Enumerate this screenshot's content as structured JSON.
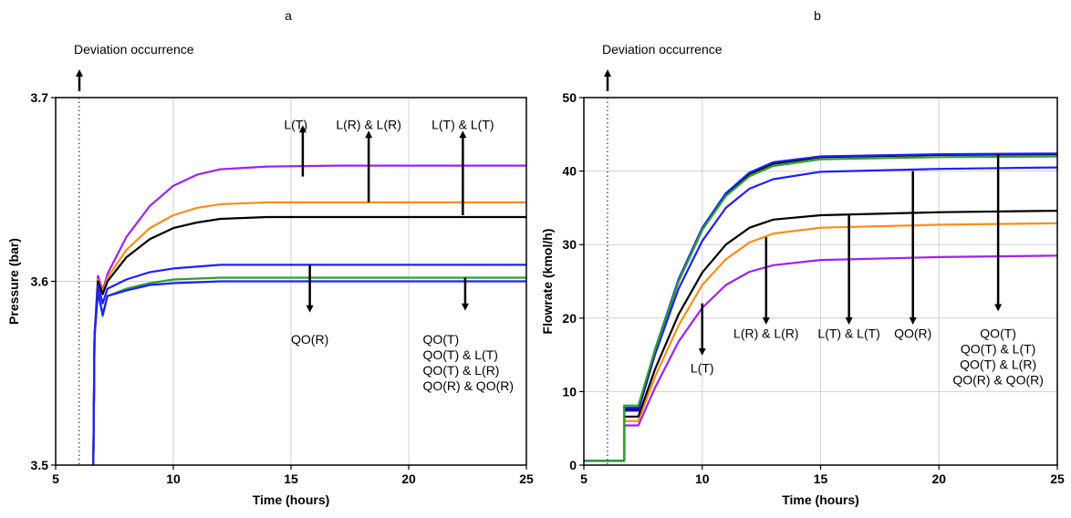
{
  "chart_data": [
    {
      "type": "line",
      "panel_label": "a",
      "xlabel": "Time (hours)",
      "ylabel": "Pressure (bar)",
      "xlim": [
        5,
        25
      ],
      "ylim": [
        3.5,
        3.7
      ],
      "xticks": [
        5,
        10,
        15,
        20,
        25
      ],
      "yticks": [
        3.5,
        3.6,
        3.7
      ],
      "xtick_labels": [
        "5",
        "10",
        "15",
        "20",
        "25"
      ],
      "ytick_labels": [
        "3.5",
        "3.6",
        "3.7"
      ],
      "grid": true,
      "deviation": {
        "x": 6,
        "label": "Deviation occurrence"
      },
      "series": [
        {
          "color": "#A020F0",
          "points": [
            [
              6.6,
              3.5
            ],
            [
              6.65,
              3.57
            ],
            [
              6.8,
              3.603
            ],
            [
              7.0,
              3.595
            ],
            [
              7.2,
              3.604
            ],
            [
              8,
              3.624
            ],
            [
              9,
              3.641
            ],
            [
              10,
              3.652
            ],
            [
              11,
              3.658
            ],
            [
              12,
              3.661
            ],
            [
              14,
              3.6625
            ],
            [
              17,
              3.663
            ],
            [
              20,
              3.663
            ],
            [
              25,
              3.663
            ]
          ]
        },
        {
          "color": "#FF8C1A",
          "points": [
            [
              6.6,
              3.5
            ],
            [
              6.65,
              3.57
            ],
            [
              6.8,
              3.601
            ],
            [
              7.0,
              3.594
            ],
            [
              7.2,
              3.602
            ],
            [
              8,
              3.617
            ],
            [
              9,
              3.629
            ],
            [
              10,
              3.636
            ],
            [
              11,
              3.64
            ],
            [
              12,
              3.642
            ],
            [
              14,
              3.643
            ],
            [
              17,
              3.643
            ],
            [
              20,
              3.643
            ],
            [
              25,
              3.643
            ]
          ]
        },
        {
          "color": "#000000",
          "points": [
            [
              6.6,
              3.5
            ],
            [
              6.65,
              3.57
            ],
            [
              6.8,
              3.6
            ],
            [
              7.0,
              3.593
            ],
            [
              7.2,
              3.6
            ],
            [
              8,
              3.613
            ],
            [
              9,
              3.623
            ],
            [
              10,
              3.629
            ],
            [
              11,
              3.632
            ],
            [
              12,
              3.634
            ],
            [
              14,
              3.635
            ],
            [
              17,
              3.635
            ],
            [
              20,
              3.635
            ],
            [
              25,
              3.635
            ]
          ]
        },
        {
          "color": "#1F1FFF",
          "points": [
            [
              6.6,
              3.5
            ],
            [
              6.65,
              3.57
            ],
            [
              6.8,
              3.598
            ],
            [
              7.0,
              3.588
            ],
            [
              7.2,
              3.596
            ],
            [
              8,
              3.601
            ],
            [
              9,
              3.605
            ],
            [
              10,
              3.607
            ],
            [
              12,
              3.609
            ],
            [
              15,
              3.609
            ],
            [
              20,
              3.609
            ],
            [
              25,
              3.609
            ]
          ]
        },
        {
          "color": "#2CA02C",
          "points": [
            [
              6.6,
              3.5
            ],
            [
              6.65,
              3.57
            ],
            [
              6.8,
              3.594
            ],
            [
              7.0,
              3.581
            ],
            [
              7.2,
              3.592
            ],
            [
              8,
              3.596
            ],
            [
              9,
              3.599
            ],
            [
              10,
              3.601
            ],
            [
              12,
              3.602
            ],
            [
              15,
              3.602
            ],
            [
              20,
              3.602
            ],
            [
              25,
              3.602
            ]
          ]
        },
        {
          "color": "#1F1FFF",
          "points": [
            [
              6.6,
              3.5
            ],
            [
              6.65,
              3.57
            ],
            [
              6.8,
              3.594
            ],
            [
              7.0,
              3.582
            ],
            [
              7.2,
              3.592
            ],
            [
              8,
              3.595
            ],
            [
              9,
              3.598
            ],
            [
              10,
              3.599
            ],
            [
              12,
              3.6
            ],
            [
              15,
              3.6
            ],
            [
              20,
              3.6
            ],
            [
              25,
              3.6
            ]
          ]
        }
      ],
      "annotations": [
        {
          "dir": "up",
          "x": 15.5,
          "y_from": 3.657,
          "y_to": 3.683,
          "lines": [
            "L(T)"
          ],
          "text_x": 15.2,
          "text_y": 3.683
        },
        {
          "dir": "up",
          "x": 18.3,
          "y_from": 3.643,
          "y_to": 3.68,
          "lines": [
            "L(R) & L(R)"
          ],
          "text_x": 18.3,
          "text_y": 3.683
        },
        {
          "dir": "up",
          "x": 22.3,
          "y_from": 3.636,
          "y_to": 3.68,
          "lines": [
            "L(T) & L(T)"
          ],
          "text_x": 22.3,
          "text_y": 3.683
        },
        {
          "dir": "down",
          "x": 15.8,
          "y_from": 3.609,
          "y_to": 3.585,
          "lines": [
            "QO(R)"
          ],
          "text_x": 15.8,
          "text_y": 3.566
        },
        {
          "dir": "down",
          "x": 22.4,
          "y_from": 3.602,
          "y_to": 3.586,
          "lines": [
            "QO(T)",
            "QO(T) & L(T)",
            "QO(T) & L(R)",
            "QO(R) & QO(R)"
          ],
          "text_x": 20.6,
          "text_y": 3.566,
          "align": "start"
        }
      ]
    },
    {
      "type": "line",
      "panel_label": "b",
      "xlabel": "Time (hours)",
      "ylabel": "Flowrate (kmol/h)",
      "xlim": [
        5,
        25
      ],
      "ylim": [
        0,
        50
      ],
      "xticks": [
        5,
        10,
        15,
        20,
        25
      ],
      "yticks": [
        0,
        10,
        20,
        30,
        40,
        50
      ],
      "xtick_labels": [
        "5",
        "10",
        "15",
        "20",
        "25"
      ],
      "ytick_labels": [
        "0",
        "10",
        "20",
        "30",
        "40",
        "50"
      ],
      "grid": true,
      "deviation": {
        "x": 6,
        "label": "Deviation occurrence"
      },
      "series": [
        {
          "color": "#A020F0",
          "points": [
            [
              5,
              0.6
            ],
            [
              6.7,
              0.6
            ],
            [
              6.7,
              5.4
            ],
            [
              7.3,
              5.4
            ],
            [
              8,
              10.5
            ],
            [
              9,
              16.8
            ],
            [
              10,
              21.4
            ],
            [
              11,
              24.5
            ],
            [
              12,
              26.3
            ],
            [
              13,
              27.2
            ],
            [
              15,
              27.9
            ],
            [
              20,
              28.3
            ],
            [
              25,
              28.5
            ]
          ]
        },
        {
          "color": "#FF8C1A",
          "points": [
            [
              5,
              0.6
            ],
            [
              6.7,
              0.6
            ],
            [
              6.7,
              6.0
            ],
            [
              7.3,
              6.0
            ],
            [
              8,
              12
            ],
            [
              9,
              19
            ],
            [
              10,
              24.5
            ],
            [
              11,
              28.0
            ],
            [
              12,
              30.3
            ],
            [
              13,
              31.5
            ],
            [
              15,
              32.3
            ],
            [
              20,
              32.7
            ],
            [
              25,
              32.9
            ]
          ]
        },
        {
          "color": "#000000",
          "points": [
            [
              5,
              0.6
            ],
            [
              6.7,
              0.6
            ],
            [
              6.7,
              6.6
            ],
            [
              7.3,
              6.6
            ],
            [
              8,
              13
            ],
            [
              9,
              20.5
            ],
            [
              10,
              26.2
            ],
            [
              11,
              30.0
            ],
            [
              12,
              32.3
            ],
            [
              13,
              33.4
            ],
            [
              15,
              34.0
            ],
            [
              20,
              34.4
            ],
            [
              25,
              34.6
            ]
          ]
        },
        {
          "color": "#1F1FFF",
          "points": [
            [
              5,
              0.6
            ],
            [
              6.7,
              0.6
            ],
            [
              6.7,
              7.4
            ],
            [
              7.3,
              7.4
            ],
            [
              8,
              15
            ],
            [
              9,
              24
            ],
            [
              10,
              30.5
            ],
            [
              11,
              35
            ],
            [
              12,
              37.6
            ],
            [
              13,
              38.9
            ],
            [
              15,
              39.9
            ],
            [
              20,
              40.3
            ],
            [
              25,
              40.5
            ]
          ]
        },
        {
          "color": "#000000",
          "points": [
            [
              5,
              0.6
            ],
            [
              6.7,
              0.6
            ],
            [
              6.7,
              7.6
            ],
            [
              7.3,
              7.6
            ],
            [
              8,
              15.5
            ],
            [
              9,
              25
            ],
            [
              10,
              32
            ],
            [
              11,
              36.8
            ],
            [
              12,
              39.6
            ],
            [
              13,
              41.0
            ],
            [
              15,
              41.9
            ],
            [
              20,
              42.2
            ],
            [
              25,
              42.3
            ]
          ]
        },
        {
          "color": "#1F1FFF",
          "points": [
            [
              5,
              0.6
            ],
            [
              6.7,
              0.6
            ],
            [
              6.7,
              7.8
            ],
            [
              7.3,
              7.8
            ],
            [
              8,
              15.7
            ],
            [
              9,
              25.3
            ],
            [
              10,
              32.3
            ],
            [
              11,
              37
            ],
            [
              12,
              39.8
            ],
            [
              13,
              41.2
            ],
            [
              15,
              42.0
            ],
            [
              20,
              42.3
            ],
            [
              25,
              42.4
            ]
          ]
        },
        {
          "color": "#2CA02C",
          "points": [
            [
              5,
              0.6
            ],
            [
              6.7,
              0.6
            ],
            [
              6.7,
              8.1
            ],
            [
              7.3,
              8.1
            ],
            [
              8,
              15.6
            ],
            [
              9,
              25
            ],
            [
              10,
              32
            ],
            [
              11,
              36.6
            ],
            [
              12,
              39.3
            ],
            [
              13,
              40.7
            ],
            [
              15,
              41.6
            ],
            [
              20,
              41.9
            ],
            [
              25,
              42.0
            ]
          ]
        }
      ],
      "annotations": [
        {
          "dir": "down",
          "x": 10.0,
          "y_from": 22.0,
          "y_to": 15.4,
          "lines": [
            "L(T)"
          ],
          "text_x": 10.0,
          "text_y": 12.6
        },
        {
          "dir": "down",
          "x": 12.7,
          "y_from": 31.0,
          "y_to": 19.6,
          "lines": [
            "L(R) & L(R)"
          ],
          "text_x": 12.7,
          "text_y": 17.3
        },
        {
          "dir": "down",
          "x": 16.2,
          "y_from": 34.0,
          "y_to": 19.6,
          "lines": [
            "L(T) & L(T)"
          ],
          "text_x": 16.2,
          "text_y": 17.3
        },
        {
          "dir": "down",
          "x": 18.9,
          "y_from": 40.0,
          "y_to": 19.6,
          "lines": [
            "QO(R)"
          ],
          "text_x": 18.9,
          "text_y": 17.3
        },
        {
          "dir": "down",
          "x": 22.5,
          "y_from": 42.3,
          "y_to": 21.4,
          "lines": [
            "QO(T)",
            "QO(T) & L(T)",
            "QO(T) & L(R)",
            "QO(R) & QO(R)"
          ],
          "text_x": 22.5,
          "text_y": 17.3
        }
      ]
    }
  ]
}
